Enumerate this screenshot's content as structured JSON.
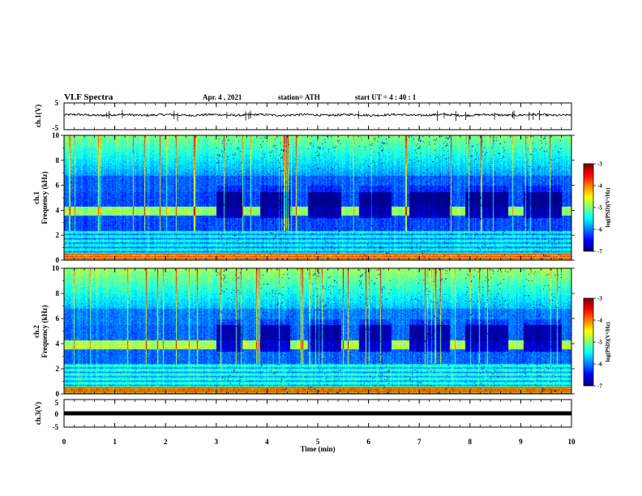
{
  "header": {
    "title": "VLF Spectra",
    "date": "Apr. 4 , 2021",
    "station": "station= ATH",
    "start_ut": "start UT =  4 : 40 : 1"
  },
  "chart_data": [
    {
      "type": "line",
      "panel": "ch1-voltage",
      "ylabel": "ch.1(V)",
      "ylim": [
        -5,
        5
      ],
      "ytick_labels": [
        "5",
        "-5"
      ],
      "xlim": [
        0,
        10
      ],
      "baseline_v": 0.5,
      "noise_amplitude_v": 0.4
    },
    {
      "type": "heatmap",
      "panel": "ch1-spectrogram",
      "ylabel_line1": "ch.1",
      "ylabel_line2": "Frequency (kHz)",
      "ylim": [
        0,
        10
      ],
      "ytick_labels": [
        "0",
        "2",
        "4",
        "6",
        "8",
        "10"
      ],
      "xlim": [
        0,
        10
      ],
      "colorbar": {
        "label": "log(PSD)(V²/Hz)",
        "range": [
          -7,
          -3
        ],
        "tick_labels": [
          "-3",
          "-4",
          "-5",
          "-6",
          "-7"
        ]
      },
      "transmitter_band_khz": [
        3.6,
        4.3
      ],
      "keyed_off_intervals_min": [
        [
          3.0,
          3.5
        ],
        [
          3.85,
          4.45
        ],
        [
          4.8,
          5.45
        ],
        [
          5.8,
          6.45
        ],
        [
          6.8,
          7.6
        ],
        [
          7.9,
          8.75
        ],
        [
          9.05,
          9.8
        ]
      ]
    },
    {
      "type": "heatmap",
      "panel": "ch2-spectrogram",
      "ylabel_line1": "ch.2",
      "ylabel_line2": "Frequency (kHz)",
      "ylim": [
        0,
        10
      ],
      "ytick_labels": [
        "0",
        "2",
        "4",
        "6",
        "8",
        "10"
      ],
      "xlim": [
        0,
        10
      ],
      "colorbar": {
        "label": "log(PSD)(V²/Hz)",
        "range": [
          -7,
          -3
        ],
        "tick_labels": [
          "-3",
          "-4",
          "-5",
          "-6",
          "-7"
        ]
      },
      "transmitter_band_khz": [
        3.6,
        4.3
      ],
      "keyed_off_intervals_min": [
        [
          3.0,
          3.5
        ],
        [
          3.85,
          4.45
        ],
        [
          4.8,
          5.45
        ],
        [
          5.8,
          6.45
        ],
        [
          6.8,
          7.6
        ],
        [
          7.9,
          8.75
        ],
        [
          9.05,
          9.8
        ]
      ]
    },
    {
      "type": "line",
      "panel": "ch3-voltage",
      "ylabel": "ch.3(V)",
      "ylim": [
        -5,
        5
      ],
      "ytick_labels": [
        "5",
        "0",
        "-5"
      ],
      "xlim": [
        0,
        10
      ],
      "xlabel": "Time  (min)",
      "xtick_labels": [
        "0",
        "1",
        "2",
        "3",
        "4",
        "5",
        "6",
        "7",
        "8",
        "9",
        "10"
      ],
      "baseline_v": 0.0
    }
  ]
}
